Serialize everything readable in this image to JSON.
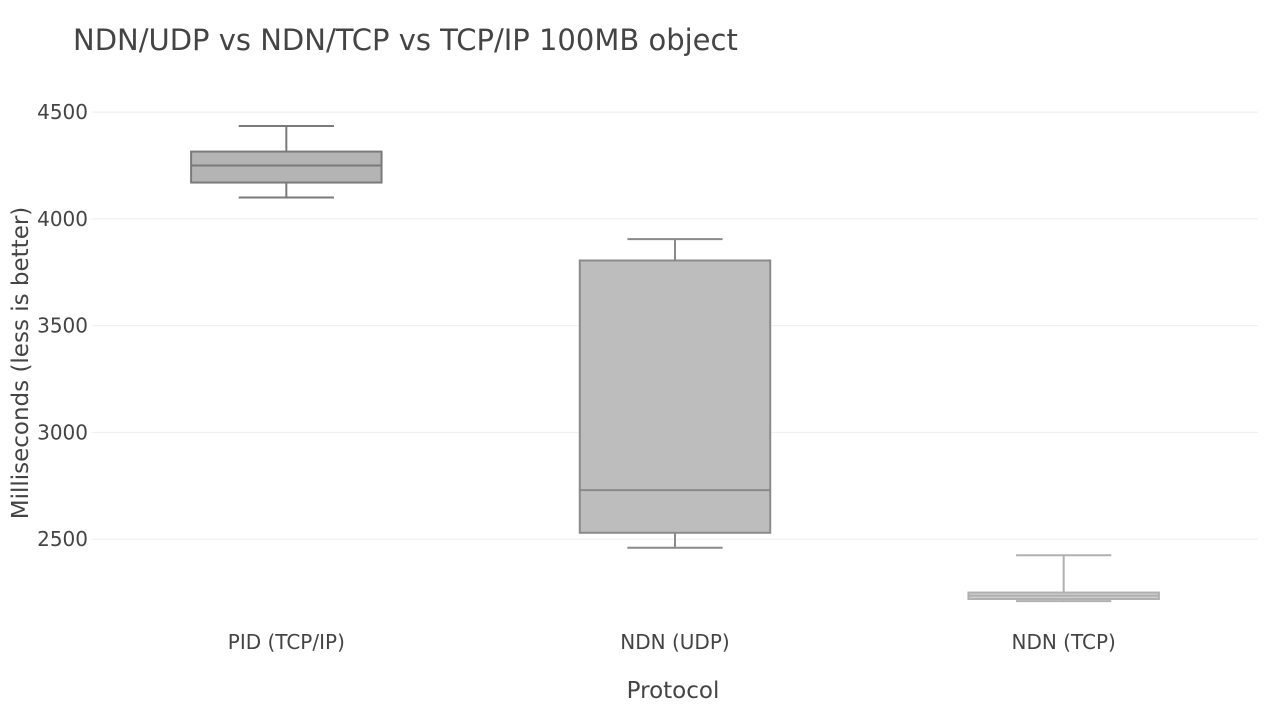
{
  "chart_data": {
    "type": "box",
    "title": "NDN/UDP vs NDN/TCP vs TCP/IP 100MB object",
    "xlabel": "Protocol",
    "ylabel": "Milliseconds (less is better)",
    "categories": [
      "PID (TCP/IP)",
      "NDN (UDP)",
      "NDN (TCP)"
    ],
    "ylim": [
      2145,
      4580
    ],
    "yticks": [
      2500,
      3000,
      3500,
      4000,
      4500
    ],
    "grid": true,
    "legend": "none",
    "boxes": [
      {
        "category": "PID (TCP/IP)",
        "min": 4100,
        "q1": 4170,
        "median": 4250,
        "q3": 4315,
        "max": 4435,
        "fill": "#b4b4b4",
        "stroke": "#7a7a7a"
      },
      {
        "category": "NDN (UDP)",
        "min": 2460,
        "q1": 2530,
        "median": 2730,
        "q3": 3805,
        "max": 3905,
        "fill": "#bdbdbd",
        "stroke": "#8a8a8a"
      },
      {
        "category": "NDN (TCP)",
        "min": 2210,
        "q1": 2220,
        "median": 2235,
        "q3": 2250,
        "max": 2425,
        "fill": "#d0d0d0",
        "stroke": "#b0b0b0"
      }
    ]
  }
}
